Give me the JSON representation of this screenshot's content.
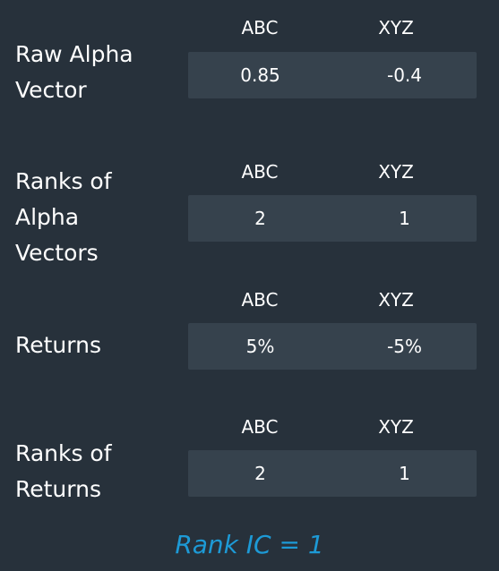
{
  "columns": [
    "ABC",
    "XYZ"
  ],
  "rows": [
    {
      "label": "Raw Alpha\nVector",
      "values": [
        "0.85",
        "-0.4"
      ]
    },
    {
      "label": "Ranks of\nAlpha\nVectors",
      "values": [
        "2",
        "1"
      ]
    },
    {
      "label": "Returns",
      "values": [
        "5%",
        "-5%"
      ]
    },
    {
      "label": "Ranks of\nReturns",
      "values": [
        "2",
        "1"
      ]
    }
  ],
  "footer": "Rank IC = 1",
  "colors": {
    "background": "#27313b",
    "box": "#36424d",
    "accent": "#1d9ad6"
  }
}
